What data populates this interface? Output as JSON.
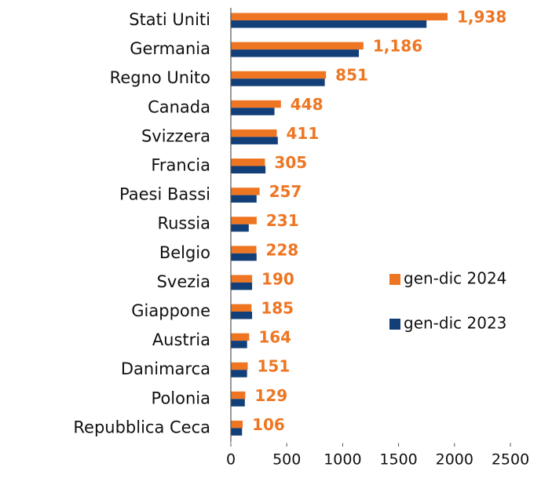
{
  "chart_data": {
    "type": "hbar",
    "categories": [
      "Stati Uniti",
      "Germania",
      "Regno Unito",
      "Canada",
      "Svizzera",
      "Francia",
      "Paesi Bassi",
      "Russia",
      "Belgio",
      "Svezia",
      "Giappone",
      "Austria",
      "Danimarca",
      "Polonia",
      "Repubblica Ceca"
    ],
    "series": [
      {
        "name": "gen-dic 2024",
        "color": "#ee7623",
        "values": [
          1938,
          1186,
          851,
          448,
          411,
          305,
          257,
          231,
          228,
          190,
          185,
          164,
          151,
          129,
          106
        ],
        "value_labels": [
          "1,938",
          "1,186",
          "851",
          "448",
          "411",
          "305",
          "257",
          "231",
          "228",
          "190",
          "185",
          "164",
          "151",
          "129",
          "106"
        ]
      },
      {
        "name": "gen-dic 2023",
        "color": "#123f78",
        "values": [
          1750,
          1145,
          840,
          390,
          420,
          310,
          230,
          160,
          230,
          190,
          190,
          145,
          145,
          125,
          100
        ]
      }
    ],
    "xlim": [
      0,
      2500
    ],
    "xticks": [
      0,
      500,
      1000,
      1500,
      2000,
      2500
    ],
    "legend": "right"
  }
}
